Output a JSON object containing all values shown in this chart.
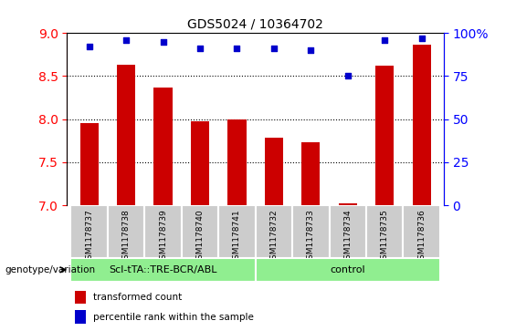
{
  "title": "GDS5024 / 10364702",
  "samples": [
    "GSM1178737",
    "GSM1178738",
    "GSM1178739",
    "GSM1178740",
    "GSM1178741",
    "GSM1178732",
    "GSM1178733",
    "GSM1178734",
    "GSM1178735",
    "GSM1178736"
  ],
  "transformed_count": [
    7.95,
    8.63,
    8.37,
    7.98,
    8.0,
    7.78,
    7.73,
    7.02,
    8.62,
    8.87
  ],
  "percentile_rank": [
    92,
    96,
    95,
    91,
    91,
    91,
    90,
    75,
    96,
    97
  ],
  "group1_label": "Scl-tTA::TRE-BCR/ABL",
  "group1_count": 5,
  "group2_label": "control",
  "group2_count": 5,
  "bar_color": "#cc0000",
  "dot_color": "#0000cc",
  "ylim_left": [
    7,
    9
  ],
  "ylim_right": [
    0,
    100
  ],
  "yticks_left": [
    7,
    7.5,
    8,
    8.5,
    9
  ],
  "yticks_right": [
    0,
    25,
    50,
    75,
    100
  ],
  "grid_values": [
    7.5,
    8.0,
    8.5
  ],
  "bg_color": "#ffffff",
  "tick_area_color": "#cccccc",
  "group_bg_color": "#90ee90",
  "legend_red_label": "transformed count",
  "legend_blue_label": "percentile rank within the sample"
}
